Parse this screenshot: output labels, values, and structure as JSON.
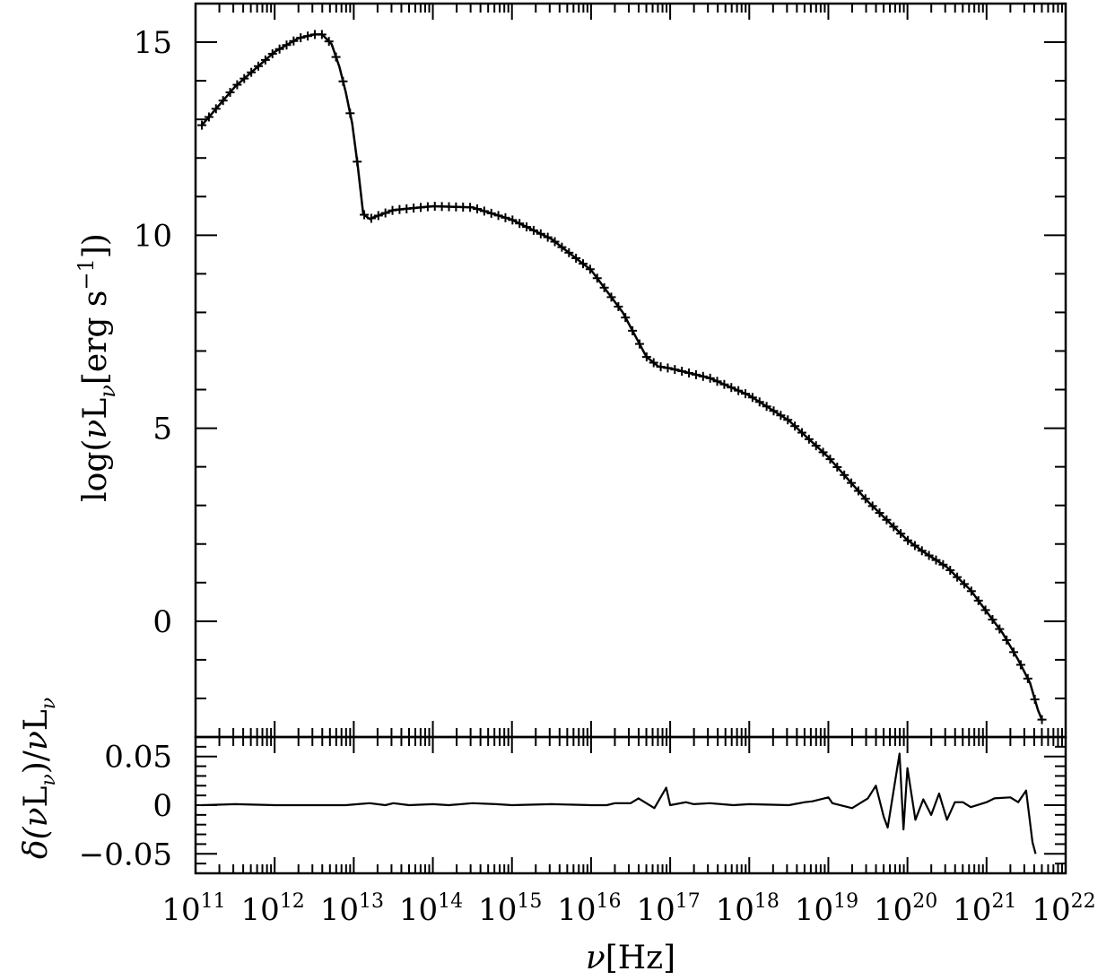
{
  "chart_data": [
    {
      "type": "line",
      "panel": "main",
      "xscale": "log",
      "xlim": [
        100000000000.0,
        1e+22
      ],
      "ylim": [
        -3,
        16
      ],
      "ylabel": "log(νL_ν[erg s⁻¹])",
      "ylabel_parts": {
        "pre": "log(",
        "nu": "ν",
        "L": "L",
        "sub": "ν",
        "mid": "[erg s",
        "sup": "−1",
        "post": "])"
      },
      "yticks": [
        0,
        5,
        10,
        15
      ],
      "yticklabels": [
        "0",
        "5",
        "10",
        "15"
      ],
      "markers": "plus",
      "series": [
        {
          "x_log10": [
            11.08,
            11.5,
            12.0,
            12.3,
            12.5,
            12.6,
            12.72,
            12.82,
            12.9,
            12.98,
            13.05,
            13.12,
            13.2,
            13.3,
            13.5,
            14.0,
            14.5,
            15.0,
            15.5,
            16.0,
            16.4,
            16.7,
            16.85,
            17.0,
            17.5,
            18.0,
            18.5,
            19.0,
            19.5,
            19.8,
            20.0,
            20.2,
            20.5,
            20.8,
            21.0,
            21.2,
            21.4,
            21.55,
            21.65,
            21.7
          ],
          "y": [
            12.85,
            13.85,
            14.75,
            15.1,
            15.2,
            15.2,
            14.95,
            14.35,
            13.7,
            12.9,
            11.8,
            10.55,
            10.42,
            10.5,
            10.65,
            10.75,
            10.72,
            10.4,
            9.9,
            9.1,
            8.0,
            6.85,
            6.6,
            6.55,
            6.3,
            5.85,
            5.2,
            4.25,
            3.1,
            2.5,
            2.1,
            1.8,
            1.4,
            0.8,
            0.25,
            -0.3,
            -1.0,
            -1.6,
            -2.3,
            -2.55
          ]
        }
      ]
    },
    {
      "type": "line",
      "panel": "residual",
      "xscale": "log",
      "xlim": [
        100000000000.0,
        1e+22
      ],
      "ylim": [
        -0.07,
        0.07
      ],
      "ylabel": "δ(νL_ν)/νL_ν",
      "ylabel_parts": {
        "pre": "δ(",
        "nu": "ν",
        "L": "L",
        "sub": "ν",
        "mid": ")/",
        "nu2": "ν",
        "L2": "L",
        "sub2": "ν"
      },
      "xlabel": "ν[Hz]",
      "xlabel_parts": {
        "nu": "ν",
        "rest": "[Hz]"
      },
      "yticks": [
        0.05,
        0,
        -0.05
      ],
      "yticklabels": [
        "0.05",
        "0",
        "−0.05"
      ],
      "xtick_exponents": [
        "11",
        "12",
        "13",
        "14",
        "15",
        "16",
        "17",
        "18",
        "19",
        "20",
        "21",
        "22"
      ],
      "xtick_base": "10",
      "series": [
        {
          "x_log10": [
            11.08,
            11.5,
            12.0,
            12.5,
            12.9,
            13.05,
            13.2,
            13.4,
            13.5,
            13.7,
            14.0,
            14.2,
            14.5,
            14.8,
            15.0,
            15.5,
            16.0,
            16.2,
            16.3,
            16.5,
            16.6,
            16.8,
            16.95,
            17.0,
            17.2,
            17.3,
            17.5,
            17.8,
            18.0,
            18.5,
            18.7,
            18.8,
            19.0,
            19.05,
            19.3,
            19.5,
            19.6,
            19.7,
            19.75,
            19.9,
            19.95,
            20.0,
            20.1,
            20.2,
            20.3,
            20.4,
            20.5,
            20.6,
            20.7,
            20.8,
            21.0,
            21.1,
            21.3,
            21.4,
            21.5,
            21.58,
            21.62
          ],
          "y": [
            0.0,
            0.001,
            0.0,
            0.0,
            0.0,
            0.001,
            0.002,
            0.0,
            0.002,
            0.0,
            0.001,
            0.0,
            0.002,
            0.001,
            0.0,
            0.001,
            0.0,
            0.0,
            0.002,
            0.002,
            0.007,
            -0.003,
            0.018,
            0.0,
            0.003,
            0.001,
            0.002,
            0.0,
            0.001,
            0.0,
            0.003,
            0.004,
            0.008,
            0.002,
            -0.003,
            0.007,
            0.02,
            -0.012,
            -0.023,
            0.053,
            -0.025,
            0.038,
            -0.015,
            0.006,
            -0.01,
            0.012,
            -0.015,
            0.003,
            0.003,
            -0.002,
            0.003,
            0.007,
            0.008,
            0.003,
            0.015,
            -0.038,
            -0.05
          ]
        }
      ]
    }
  ]
}
